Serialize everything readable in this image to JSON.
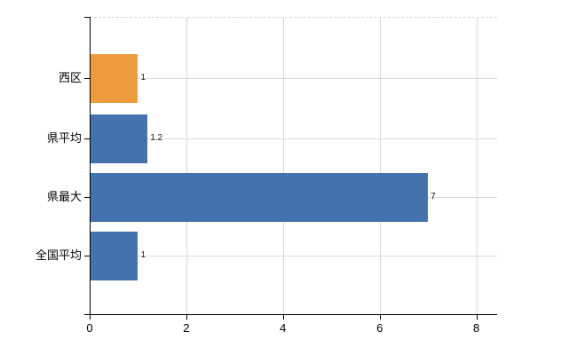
{
  "chart_data": {
    "type": "bar",
    "orientation": "horizontal",
    "title": "",
    "xlabel": "",
    "ylabel": "",
    "categories": [
      "西区",
      "県平均",
      "県最大",
      "全国平均"
    ],
    "values": [
      1,
      1.2,
      7,
      1
    ],
    "data_labels": [
      "1",
      "1.2",
      "7",
      "1"
    ],
    "x_ticks": [
      0,
      2,
      4,
      6,
      8
    ],
    "x_tick_labels": [
      "0",
      "2",
      "4",
      "6",
      "8"
    ],
    "xlim": [
      0,
      8.43
    ],
    "bar_colors": [
      "#ED9B3D",
      "#4372AE",
      "#4372AE",
      "#4372AE"
    ],
    "grid": true,
    "legend": false
  },
  "colors": {
    "bar_highlight": "#ED9B3D",
    "bar_default": "#4372AE",
    "gridline": "#D9D9D9",
    "axis": "#000000",
    "text": "#000000",
    "data_label_text": "#222222"
  }
}
